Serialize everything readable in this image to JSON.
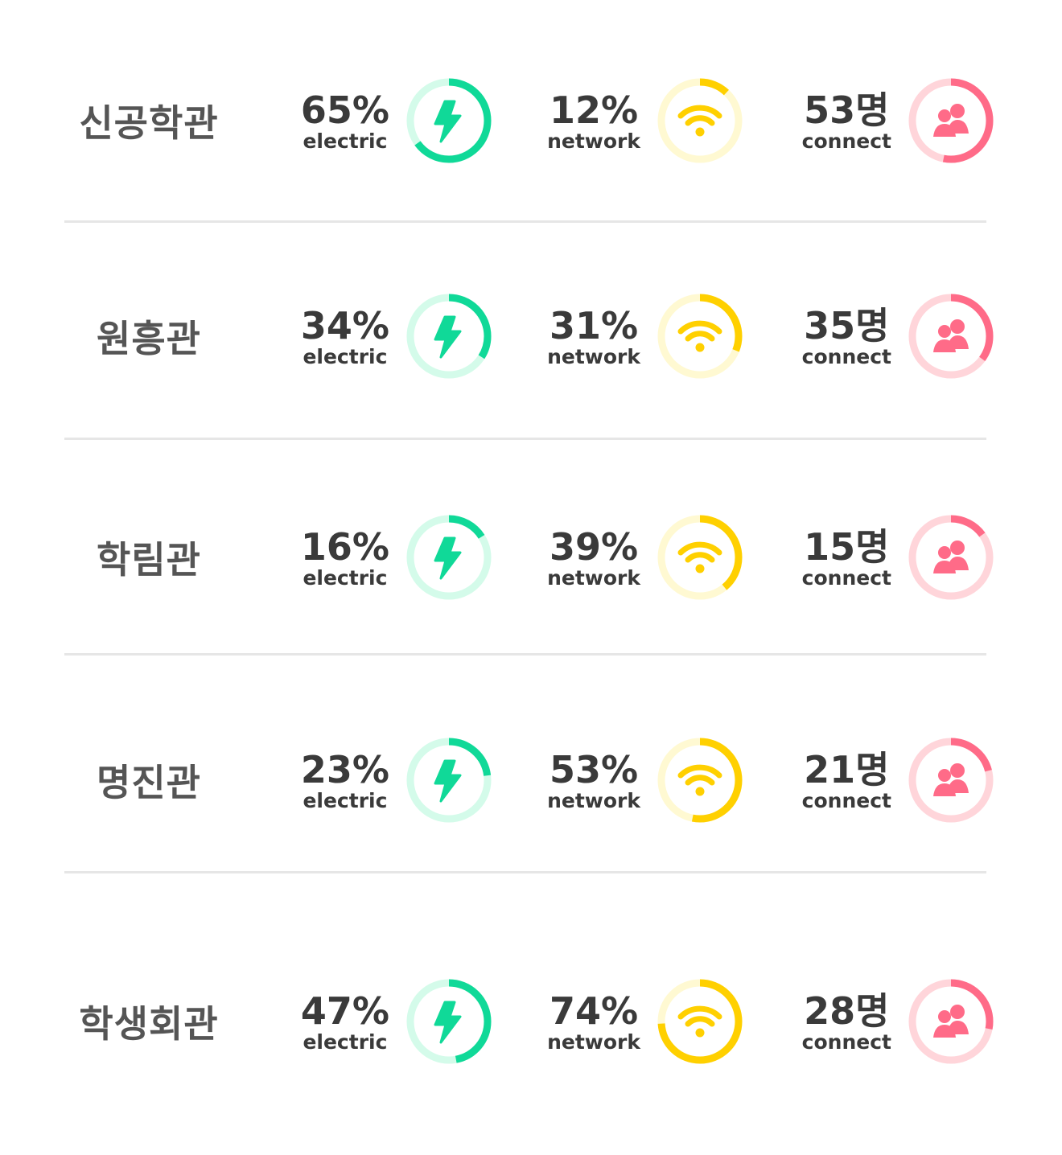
{
  "colors": {
    "electric": "#10d998",
    "electric_track": "#d4fbea",
    "network": "#ffd000",
    "network_track": "#fff9d2",
    "connect": "#ff6b88",
    "connect_track": "#ffd5da"
  },
  "labels": {
    "electric": "electric",
    "network": "network",
    "connect": "connect"
  },
  "icons": {
    "electric": "lightning-bolt-icon",
    "network": "wifi-icon",
    "connect": "people-icon"
  },
  "buildings": [
    {
      "name": "신공학관",
      "electric": {
        "value": "65%",
        "fraction": 0.65
      },
      "network": {
        "value": "12%",
        "fraction": 0.12
      },
      "connect": {
        "value": "53명",
        "fraction": 0.53
      }
    },
    {
      "name": "원흥관",
      "electric": {
        "value": "34%",
        "fraction": 0.34
      },
      "network": {
        "value": "31%",
        "fraction": 0.31
      },
      "connect": {
        "value": "35명",
        "fraction": 0.35
      }
    },
    {
      "name": "학림관",
      "electric": {
        "value": "16%",
        "fraction": 0.16
      },
      "network": {
        "value": "39%",
        "fraction": 0.39
      },
      "connect": {
        "value": "15명",
        "fraction": 0.15
      }
    },
    {
      "name": "명진관",
      "electric": {
        "value": "23%",
        "fraction": 0.23
      },
      "network": {
        "value": "53%",
        "fraction": 0.53
      },
      "connect": {
        "value": "21명",
        "fraction": 0.21
      }
    },
    {
      "name": "학생회관",
      "electric": {
        "value": "47%",
        "fraction": 0.47
      },
      "network": {
        "value": "74%",
        "fraction": 0.74
      },
      "connect": {
        "value": "28명",
        "fraction": 0.28
      }
    }
  ]
}
